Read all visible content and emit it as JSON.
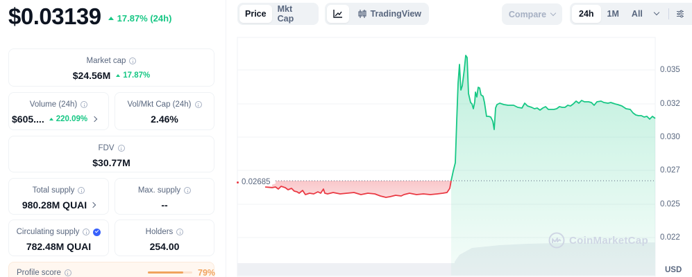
{
  "header": {
    "price": "$0.03139",
    "change": "17.87% (24h)",
    "change_direction": "up",
    "up_color": "#16c784",
    "down_color": "#ea3943"
  },
  "stats": {
    "market_cap": {
      "label": "Market cap",
      "value": "$24.56M",
      "change": "17.87%"
    },
    "volume": {
      "label": "Volume (24h)",
      "value": "$605....",
      "change": "220.09%"
    },
    "vol_mkt_cap": {
      "label": "Vol/Mkt Cap (24h)",
      "value": "2.46%"
    },
    "fdv": {
      "label": "FDV",
      "value": "$30.77M"
    },
    "total_supply": {
      "label": "Total supply",
      "value": "980.28M QUAI"
    },
    "max_supply": {
      "label": "Max. supply",
      "value": "--"
    },
    "circulating_supply": {
      "label": "Circulating supply",
      "value": "782.48M QUAI"
    },
    "holders": {
      "label": "Holders",
      "value": "254.00"
    },
    "profile_score": {
      "label": "Profile score",
      "value": "79%",
      "percent": 79
    }
  },
  "toolbar": {
    "data_tabs": [
      {
        "label": "Price",
        "active": true
      },
      {
        "label": "Mkt Cap",
        "active": false
      }
    ],
    "chart_type": {
      "line_icon": "line-chart-icon",
      "tradingview_icon": "candlestick-icon",
      "tradingview_label": "TradingView"
    },
    "compare_label": "Compare",
    "ranges": [
      {
        "label": "24h",
        "active": true
      },
      {
        "label": "1M",
        "active": false
      },
      {
        "label": "All",
        "active": false
      }
    ],
    "more_icon": "chevron-down-icon",
    "settings_icon": "sliders-icon"
  },
  "chart": {
    "watermark": "CoinMarketCap",
    "currency": "USD",
    "baseline_label": "0.02685",
    "y_ticks": [
      "0.035",
      "0.032",
      "0.030",
      "0.027",
      "0.025",
      "0.022"
    ]
  },
  "chart_data": {
    "type": "area",
    "title": "QUAI Price (24h)",
    "xlabel": "",
    "ylabel": "USD",
    "ylim": [
      0.021,
      0.0365
    ],
    "y_ticks": [
      0.022,
      0.025,
      0.027,
      0.03,
      0.032,
      0.035
    ],
    "baseline": 0.02685,
    "grid": true,
    "series": [
      {
        "name": "Price",
        "x_fraction": [
          0.0,
          0.02,
          0.04,
          0.06,
          0.08,
          0.1,
          0.12,
          0.14,
          0.16,
          0.18,
          0.2,
          0.22,
          0.24,
          0.26,
          0.28,
          0.3,
          0.32,
          0.34,
          0.36,
          0.38,
          0.4,
          0.42,
          0.44,
          0.46,
          0.48,
          0.5,
          0.51,
          0.515,
          0.52,
          0.53,
          0.535,
          0.54,
          0.55,
          0.56,
          0.565,
          0.57,
          0.58,
          0.59,
          0.6,
          0.61,
          0.62,
          0.63,
          0.64,
          0.66,
          0.68,
          0.7,
          0.72,
          0.74,
          0.76,
          0.78,
          0.8,
          0.82,
          0.84,
          0.86,
          0.88,
          0.9,
          0.92,
          0.94,
          0.96,
          0.98,
          1.0
        ],
        "values": [
          0.0261,
          0.0259,
          0.0262,
          0.0258,
          0.0257,
          0.026,
          0.0257,
          0.0258,
          0.0257,
          0.0259,
          0.0255,
          0.0257,
          0.0257,
          0.0258,
          0.0256,
          0.0257,
          0.0255,
          0.0254,
          0.0255,
          0.0258,
          0.0256,
          0.0257,
          0.0256,
          0.0257,
          0.0258,
          0.0262,
          0.028,
          0.0335,
          0.035,
          0.0335,
          0.0362,
          0.0355,
          0.0325,
          0.033,
          0.0338,
          0.0328,
          0.0318,
          0.0317,
          0.0309,
          0.0321,
          0.032,
          0.0319,
          0.032,
          0.0318,
          0.0321,
          0.0319,
          0.0317,
          0.0316,
          0.0318,
          0.0319,
          0.0323,
          0.0326,
          0.0325,
          0.0324,
          0.0323,
          0.0322,
          0.032,
          0.0317,
          0.0316,
          0.0313,
          0.0314
        ]
      }
    ]
  }
}
